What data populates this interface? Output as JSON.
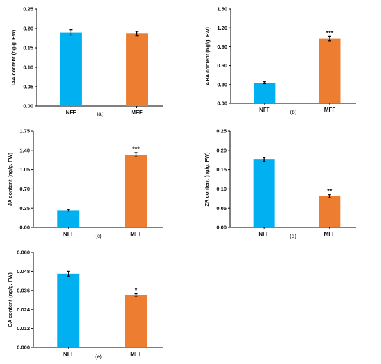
{
  "colors": {
    "nff": "#00B0F0",
    "mff": "#ED7D31",
    "axis": "#000000",
    "error_bar": "#000000"
  },
  "chart_data": [
    {
      "type": "bar",
      "panel": "(a)",
      "ylabel": "IAA content (ng/g. FW)",
      "categories": [
        "NFF",
        "MFF"
      ],
      "values": [
        0.19,
        0.187
      ],
      "errors": [
        0.007,
        0.006
      ],
      "significance": [
        "",
        ""
      ],
      "ylim": [
        0,
        0.25
      ],
      "yticks": [
        "0.00",
        "0.05",
        "0.10",
        "0.15",
        "0.20",
        "0.25"
      ],
      "grid": false
    },
    {
      "type": "bar",
      "panel": "(b)",
      "ylabel": "ABA content (ng/g. FW)",
      "categories": [
        "NFF",
        "MFF"
      ],
      "values": [
        0.33,
        1.03
      ],
      "errors": [
        0.015,
        0.035
      ],
      "significance": [
        "",
        "***"
      ],
      "ylim": [
        0,
        1.5
      ],
      "yticks": [
        "0.00",
        "0.30",
        "0.60",
        "0.90",
        "1.20",
        "1.50"
      ],
      "grid": false
    },
    {
      "type": "bar",
      "panel": "(c)",
      "ylabel": "JA content (ng/g. FW)",
      "categories": [
        "NFF",
        "MFF"
      ],
      "values": [
        0.31,
        1.32
      ],
      "errors": [
        0.015,
        0.04
      ],
      "significance": [
        "",
        "***"
      ],
      "ylim": [
        0,
        1.75
      ],
      "yticks": [
        "0.00",
        "0.35",
        "0.70",
        "1.05",
        "1.40",
        "1.75"
      ],
      "grid": false
    },
    {
      "type": "bar",
      "panel": "(d)",
      "ylabel": "ZR content (ng/g. FW)",
      "categories": [
        "NFF",
        "MFF"
      ],
      "values": [
        0.176,
        0.081
      ],
      "errors": [
        0.005,
        0.004
      ],
      "significance": [
        "",
        "**"
      ],
      "ylim": [
        0,
        0.25
      ],
      "yticks": [
        "0.00",
        "0.05",
        "0.10",
        "0.15",
        "0.20",
        "0.25"
      ],
      "grid": false
    },
    {
      "type": "bar",
      "panel": "(e)",
      "ylabel": "GA content (ng/g. FW)",
      "categories": [
        "NFF",
        "MFF"
      ],
      "values": [
        0.0465,
        0.0329
      ],
      "errors": [
        0.0015,
        0.001
      ],
      "significance": [
        "",
        "*"
      ],
      "ylim": [
        0,
        0.06
      ],
      "yticks": [
        "0.000",
        "0.012",
        "0.024",
        "0.036",
        "0.048",
        "0.060"
      ],
      "grid": false
    }
  ]
}
